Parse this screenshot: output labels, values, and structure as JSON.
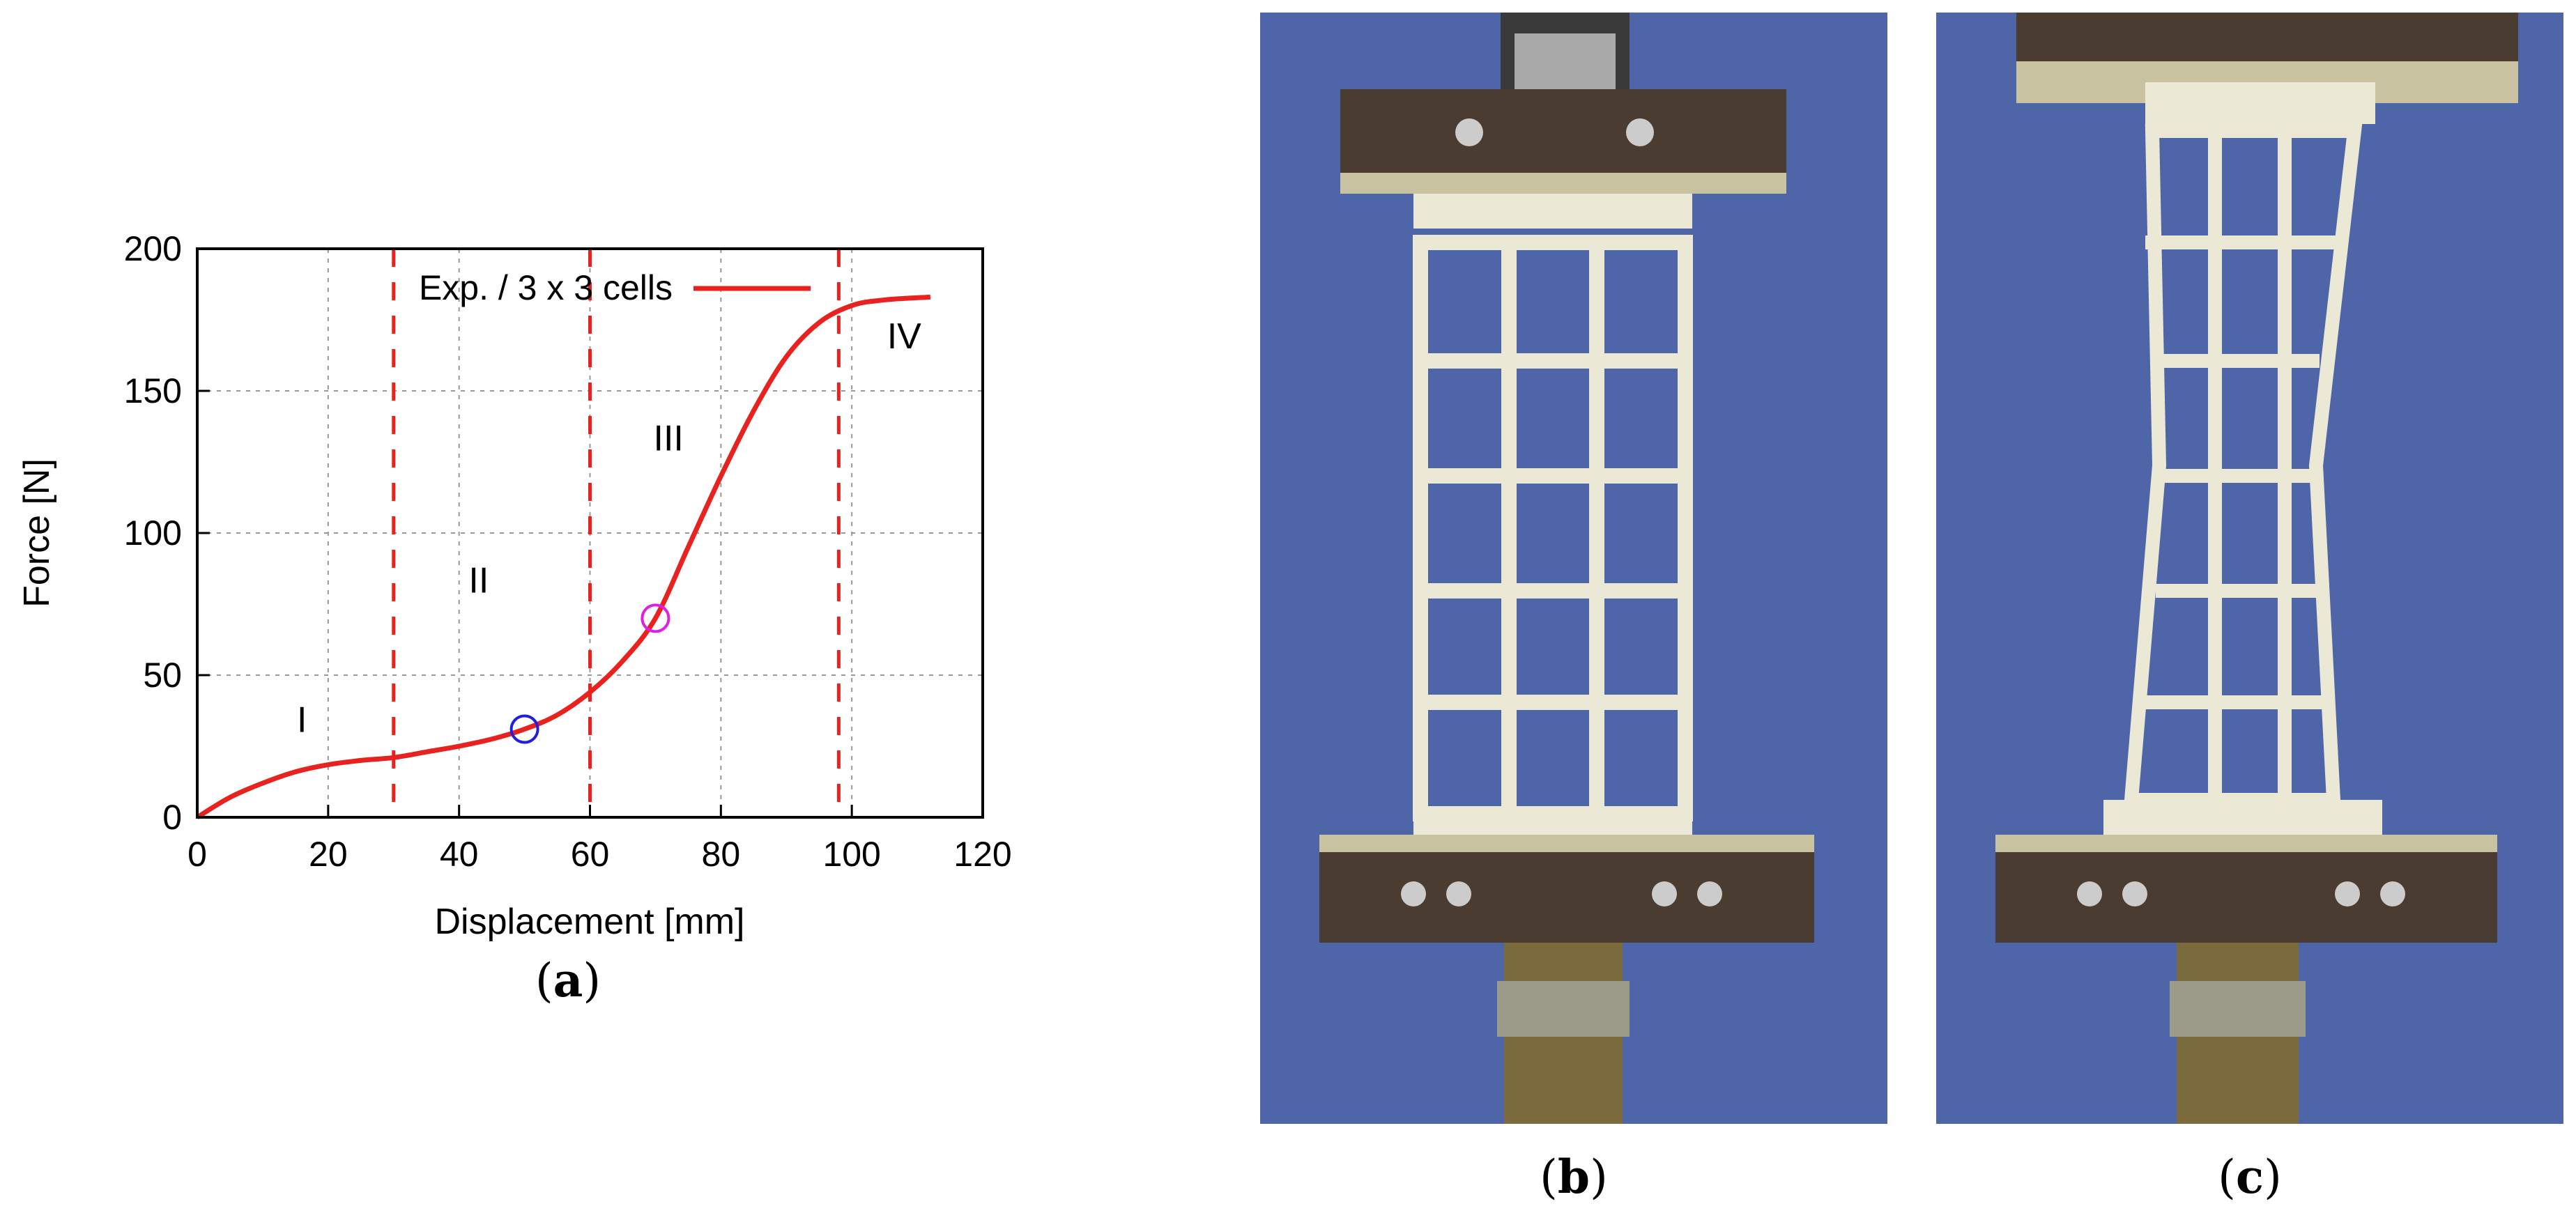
{
  "chart_data": {
    "type": "line",
    "xlabel": "Displacement [mm]",
    "ylabel": "Force [N]",
    "xlim": [
      0,
      120
    ],
    "ylim": [
      0,
      200
    ],
    "xticks": [
      0,
      20,
      40,
      60,
      80,
      100,
      120
    ],
    "yticks": [
      0,
      50,
      100,
      150,
      200
    ],
    "grid": true,
    "legend_placement": "top",
    "series": [
      {
        "name": "Exp. / 3 x 3 cells",
        "color": "#e8231f",
        "x": [
          0,
          5,
          10,
          15,
          20,
          25,
          30,
          35,
          40,
          45,
          50,
          55,
          60,
          65,
          70,
          75,
          80,
          85,
          90,
          95,
          100,
          105,
          112
        ],
        "y": [
          0,
          7,
          12,
          16,
          18.5,
          20,
          21,
          23,
          25,
          27.5,
          31,
          36,
          44,
          55,
          70,
          95,
          120,
          143,
          162,
          174,
          180,
          182,
          183
        ]
      }
    ],
    "vlines": [
      30,
      60,
      98
    ],
    "regions": [
      {
        "label": "I",
        "x": 16,
        "y": 30
      },
      {
        "label": "II",
        "x": 43,
        "y": 79
      },
      {
        "label": "III",
        "x": 72,
        "y": 129
      },
      {
        "label": "IV",
        "x": 108,
        "y": 165
      }
    ],
    "markers": [
      {
        "x": 50,
        "y": 31,
        "color": "#1f1fe0"
      },
      {
        "x": 70,
        "y": 70,
        "color": "#e020e0"
      }
    ]
  },
  "captions": {
    "a_open": "(",
    "a_letter": "a",
    "a_close": ")",
    "b_open": "(",
    "b_letter": "b",
    "b_close": ")",
    "c_open": "(",
    "c_letter": "c",
    "c_close": ")"
  }
}
